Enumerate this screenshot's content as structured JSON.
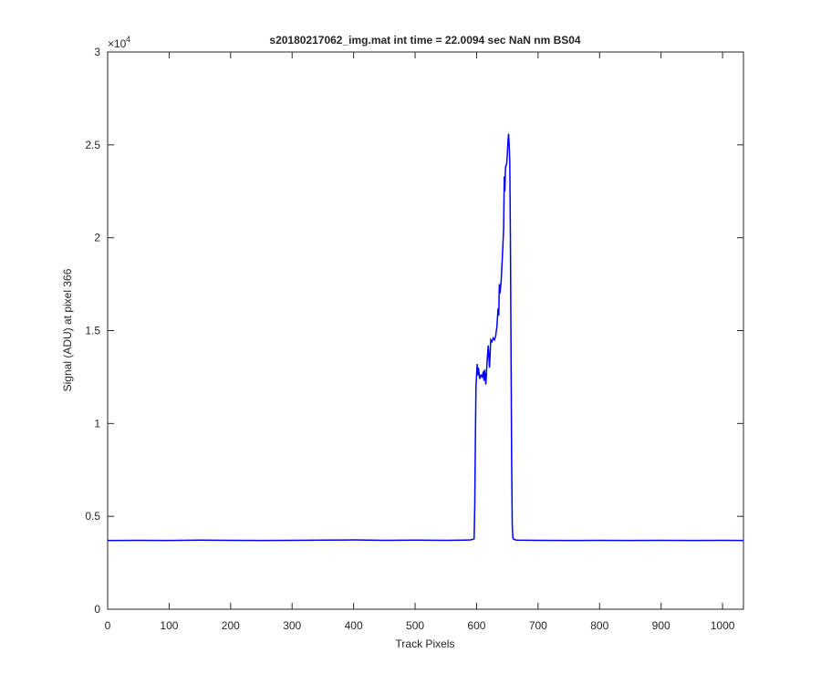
{
  "chart_data": {
    "type": "line",
    "title": "s20180217062_img.mat int time = 22.0094 sec  NaN nm BS04",
    "x_label": "Track Pixels",
    "y_label": "Signal (ADU) at pixel 366",
    "y_scale_base": "×10",
    "y_scale_exponent": "4",
    "xlim": [
      0,
      1034
    ],
    "ylim": [
      0,
      3
    ],
    "xticks": [
      0,
      100,
      200,
      300,
      400,
      500,
      600,
      700,
      800,
      900,
      1000
    ],
    "yticks": [
      0,
      0.5,
      1,
      1.5,
      2,
      2.5,
      3
    ],
    "grid": false,
    "series": [
      {
        "color": "#0000ff",
        "x": [
          0,
          50,
          100,
          150,
          200,
          250,
          300,
          350,
          400,
          450,
          500,
          550,
          580,
          590,
          594,
          596,
          597,
          598,
          599,
          601,
          602,
          603,
          605,
          607,
          609,
          611,
          612,
          613,
          615,
          617,
          619,
          621,
          623,
          625,
          627,
          629,
          631,
          633,
          635,
          636,
          637,
          638,
          640,
          642,
          644,
          645,
          646,
          647,
          649,
          650,
          651,
          652,
          653,
          654,
          655,
          656,
          657,
          658,
          659,
          660,
          662,
          665,
          700,
          750,
          800,
          850,
          900,
          950,
          1000,
          1034
        ],
        "values": [
          0.37,
          0.371,
          0.37,
          0.372,
          0.371,
          0.37,
          0.371,
          0.372,
          0.373,
          0.371,
          0.372,
          0.371,
          0.372,
          0.373,
          0.376,
          0.38,
          0.55,
          0.9,
          1.2,
          1.32,
          1.26,
          1.3,
          1.24,
          1.26,
          1.25,
          1.28,
          1.23,
          1.29,
          1.21,
          1.33,
          1.42,
          1.3,
          1.45,
          1.44,
          1.46,
          1.45,
          1.47,
          1.52,
          1.62,
          1.58,
          1.75,
          1.7,
          1.77,
          1.9,
          2.05,
          2.33,
          2.25,
          2.38,
          2.4,
          2.45,
          2.52,
          2.56,
          2.5,
          2.4,
          2.0,
          1.4,
          0.8,
          0.45,
          0.385,
          0.378,
          0.375,
          0.372,
          0.371,
          0.37,
          0.371,
          0.37,
          0.371,
          0.37,
          0.371,
          0.37
        ]
      }
    ]
  }
}
